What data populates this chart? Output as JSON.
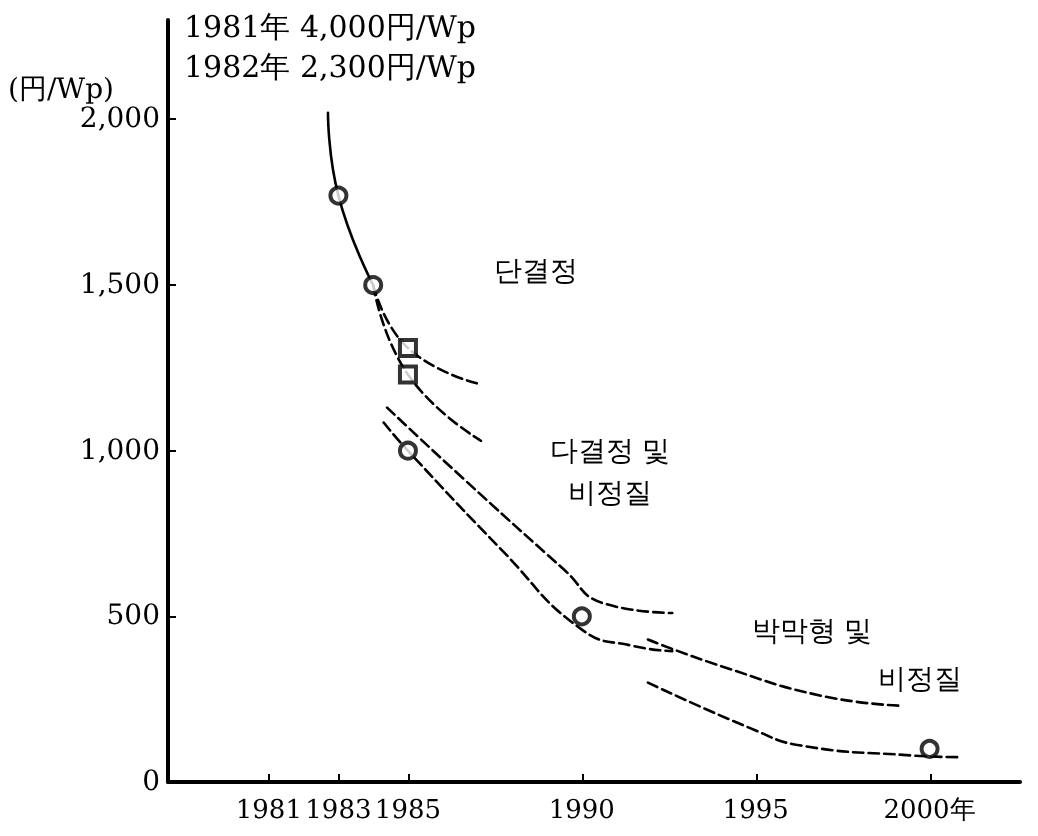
{
  "chart_data": {
    "type": "line",
    "ylabel": "(円/Wp)",
    "xlim": [
      1978.1,
      2002.6
    ],
    "ylim": [
      0,
      2300
    ],
    "xticks": [
      1981,
      1983,
      1985,
      1990,
      1995,
      {
        "value": 2000,
        "label": "2000年"
      }
    ],
    "yticks": [
      0,
      500,
      {
        "value": 1000,
        "label": "1,000"
      },
      {
        "value": 1500,
        "label": "1,500"
      },
      {
        "value": 2000,
        "label": "2,000"
      }
    ],
    "annotations": [
      "1981年 4,000円/Wp",
      "1982年 2,300円/Wp",
      "단결정",
      "다결정 및",
      "비정질",
      "박막형 및",
      "비정질"
    ],
    "series": [
      {
        "color": "#000000",
        "line_style": "solid",
        "marker": "none",
        "x": [
          1982.7,
          1983,
          1984
        ],
        "values": [
          2020,
          1770,
          1500
        ]
      },
      {
        "color": "#000000",
        "line_style": "dashed",
        "marker": "none",
        "x": [
          1984,
          1985,
          1987.1
        ],
        "values": [
          1500,
          1310,
          1200
        ]
      },
      {
        "color": "#000000",
        "line_style": "dashed",
        "marker": "none",
        "x": [
          1984,
          1985,
          1987.1
        ],
        "values": [
          1500,
          1230,
          1030
        ]
      },
      {
        "color": "#000000",
        "line_style": "dashed",
        "marker": "none",
        "x": [
          1984.4,
          1986.6,
          1989.5,
          1990.6,
          1992.6
        ],
        "values": [
          1130,
          915,
          640,
          540,
          510
        ]
      },
      {
        "color": "#000000",
        "line_style": "dashed",
        "marker": "none",
        "x": [
          1984.3,
          1985,
          1987.7,
          1990,
          1991.5,
          1992.6
        ],
        "values": [
          1085,
          1000,
          700,
          460,
          410,
          395
        ]
      },
      {
        "color": "#000000",
        "line_style": "dashed",
        "marker": "none",
        "x": [
          1991.9,
          1994,
          1996.9,
          1999.2
        ],
        "values": [
          430,
          350,
          260,
          230
        ]
      },
      {
        "color": "#000000",
        "line_style": "dashed",
        "marker": "none",
        "x": [
          1991.9,
          1994.9,
          1996.3,
          1999.5,
          2000.8
        ],
        "values": [
          300,
          160,
          110,
          80,
          75
        ]
      },
      {
        "type": "scatter",
        "color": "#000000",
        "marker": "circle",
        "x": [
          1983,
          1984,
          1985,
          1990,
          2000
        ],
        "values": [
          1770,
          1500,
          1000,
          500,
          100
        ]
      },
      {
        "type": "scatter",
        "color": "#000000",
        "marker": "square",
        "x": [
          1985,
          1985
        ],
        "values": [
          1310,
          1230
        ]
      }
    ]
  }
}
